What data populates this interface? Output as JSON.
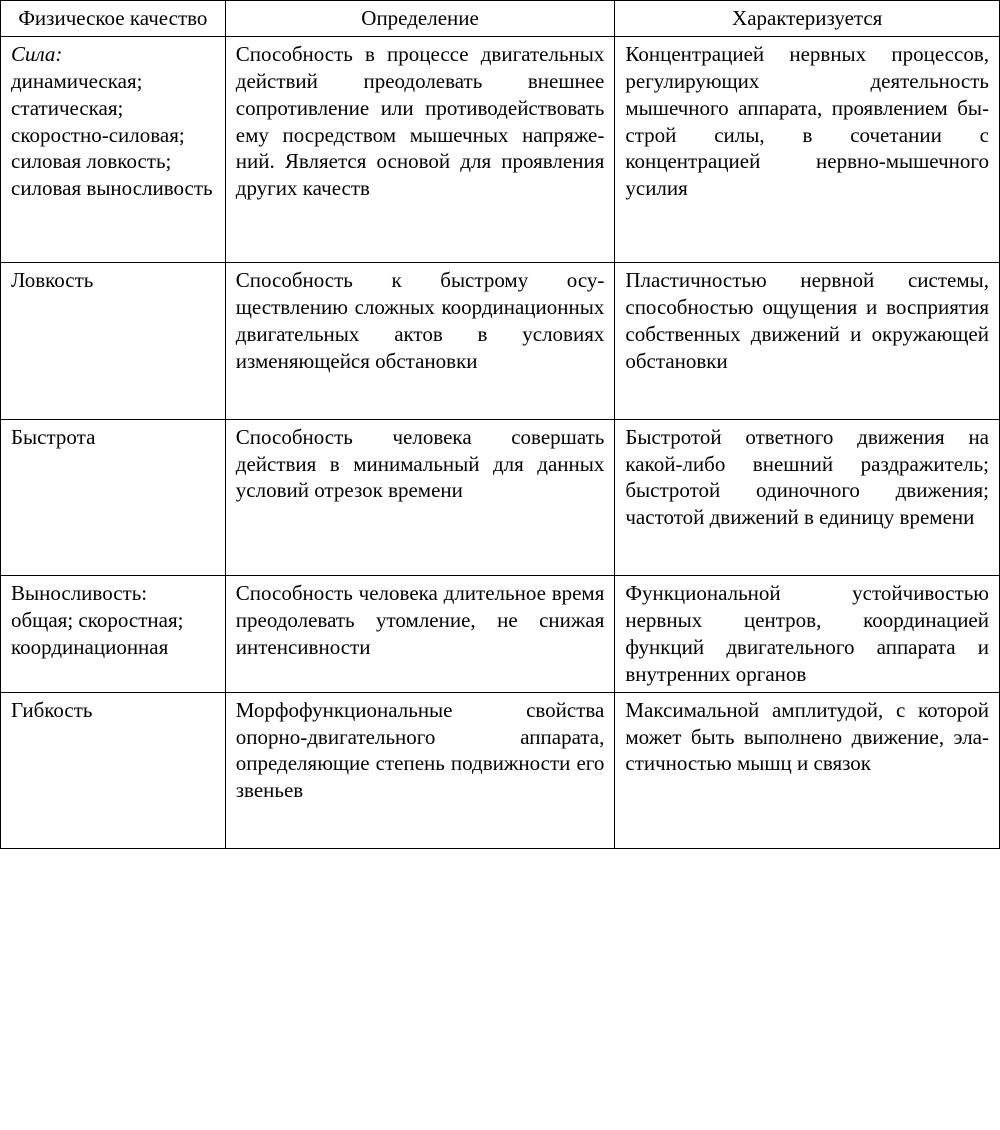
{
  "table": {
    "columns": [
      "Физическое качество",
      "Определение",
      "Характеризуется"
    ],
    "column_widths_pct": [
      22.5,
      39,
      38.5
    ],
    "border_color": "#000000",
    "background_color": "#ffffff",
    "text_color": "#000000",
    "font_family": "Times New Roman",
    "font_size_pt": 16,
    "rows": [
      {
        "quality_title": "Сила:",
        "quality_italic": true,
        "quality_sub": "динамическая; статическая; скоростно-силовая; силовая ловкость; силовая выносливость",
        "definition": "Способность в процессе двига­тельных действий преодолевать внешнее сопротивление или противодействовать ему по­средством мышечных напряже­ний. Является основой для про­явления других качеств",
        "characteristic": "Концентрацией нервных процессов, регулирующих деятельность мышечного аппарата, проявлением бы­строй силы, в сочетании с концентрацией нервно-мышечного усилия"
      },
      {
        "quality_title": "Ловкость",
        "quality_italic": false,
        "quality_sub": "",
        "definition": "Способность к быстрому осу­ществлению сложных коорди­национных двигательных актов в условиях изменяющейся об­становки",
        "characteristic": "Пластичностью нервной си­стемы, способностью ощу­щения и восприятия собст­венных движений и окру­жающей обстановки"
      },
      {
        "quality_title": "Быстрота",
        "quality_italic": false,
        "quality_sub": "",
        "definition": "Способность человека совер­шать действия в минимальный для данных условий отрезок времени",
        "characteristic": "Быстротой ответного дви­жения на какой-либо внеш­ний раздражитель; быстро­той одиночного движения; частотой движений в еди­ницу времени"
      },
      {
        "quality_title": "Выносливость:",
        "quality_italic": false,
        "quality_sub": "общая; скоростная; координационная",
        "definition": "Способность человека длитель­ное время преодолевать утом­ление, не снижая интенсивно­сти",
        "characteristic": "Функциональной устойчи­востью нервных центров, координацией функций двигательного аппарата и внутренних органов"
      },
      {
        "quality_title": "Гибкость",
        "quality_italic": false,
        "quality_sub": "",
        "definition": "Морфофункциональные свой­ства опорно-двигательного ап­парата, определяющие степень подвижности его звеньев",
        "characteristic": "Максимальной амплитудой, с которой может быть вы­полнено движение, эла­стичностью мышц и связок"
      }
    ]
  }
}
